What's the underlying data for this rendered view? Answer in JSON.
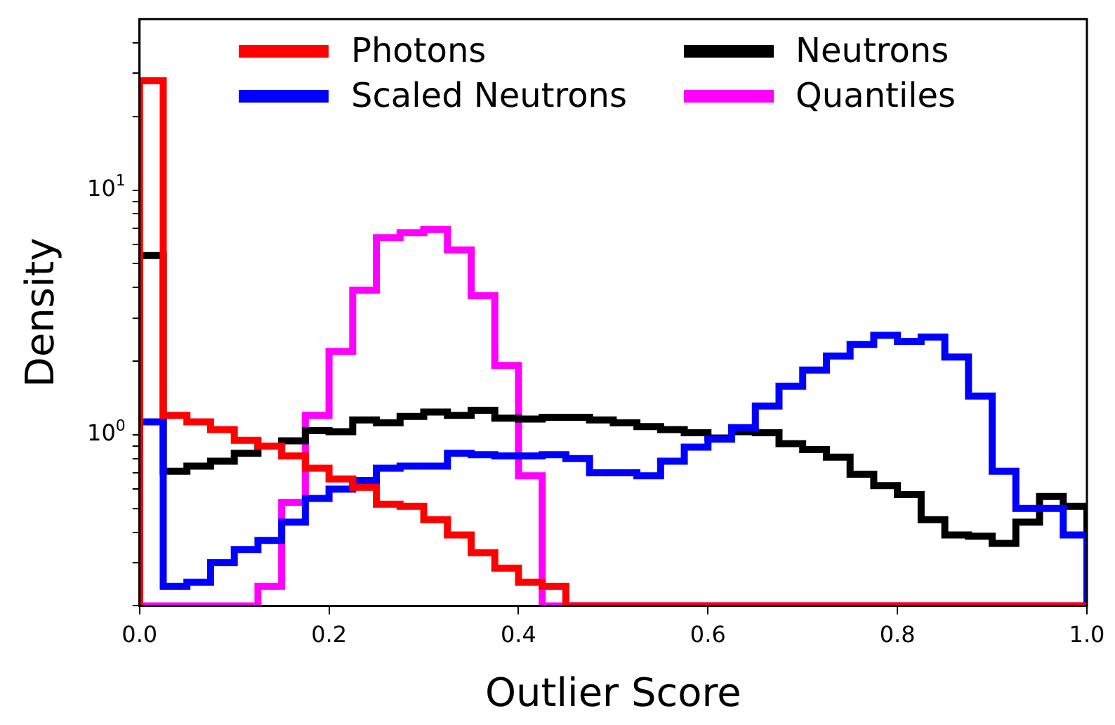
{
  "chart_data": {
    "type": "histogram",
    "xlabel": "Outlier Score",
    "ylabel": "Density",
    "log": "y",
    "grid": false,
    "legend": "top",
    "line_style": "solid",
    "bins": [
      0,
      0.025,
      0.05,
      0.075,
      0.1,
      0.125,
      0.15,
      0.175,
      0.2,
      0.225,
      0.25,
      0.275,
      0.3,
      0.325,
      0.35,
      0.375,
      0.4,
      0.425,
      0.45,
      0.475,
      0.5,
      0.525,
      0.55,
      0.575,
      0.6,
      0.625,
      0.65,
      0.675,
      0.7,
      0.725,
      0.75,
      0.775,
      0.8,
      0.825,
      0.85,
      0.875,
      0.9,
      0.925,
      0.95,
      0.975,
      1.0
    ],
    "series": [
      {
        "name": "Photons",
        "color": "#ff0000",
        "values": [
          28,
          1.2,
          1.13,
          1.05,
          0.95,
          0.9,
          0.82,
          0.73,
          0.66,
          0.61,
          0.52,
          0.51,
          0.45,
          0.39,
          0.33,
          0.285,
          0.25,
          0.24,
          null,
          null,
          null,
          null,
          null,
          null,
          null,
          null,
          null,
          null,
          null,
          null,
          null,
          null,
          null,
          null,
          null,
          null,
          null,
          null,
          null,
          null
        ]
      },
      {
        "name": "Scaled Neutrons",
        "color": "#0000ff",
        "values": [
          1.13,
          0.24,
          0.25,
          0.3,
          0.34,
          0.37,
          0.44,
          0.55,
          0.6,
          0.65,
          0.73,
          0.745,
          0.745,
          0.84,
          0.83,
          0.82,
          0.82,
          0.83,
          0.8,
          0.7,
          0.7,
          0.68,
          0.78,
          0.89,
          0.96,
          1.07,
          1.31,
          1.58,
          1.84,
          2.1,
          2.34,
          2.55,
          2.41,
          2.51,
          2.08,
          1.44,
          0.71,
          0.5,
          0.5,
          0.39
        ]
      },
      {
        "name": "Neutrons",
        "color": "#000000",
        "values": [
          5.4,
          0.71,
          0.745,
          0.78,
          0.84,
          0.9,
          0.945,
          1.04,
          1.03,
          1.15,
          1.12,
          1.19,
          1.24,
          1.2,
          1.26,
          1.17,
          1.16,
          1.18,
          1.18,
          1.15,
          1.12,
          1.08,
          1.05,
          1.02,
          0.97,
          1.03,
          1.02,
          0.92,
          0.87,
          0.81,
          0.69,
          0.62,
          0.57,
          0.45,
          0.39,
          0.385,
          0.36,
          0.44,
          0.56,
          0.51
        ]
      },
      {
        "name": "Quantiles",
        "color": "#ff00ff",
        "values": [
          null,
          null,
          null,
          null,
          null,
          0.24,
          0.53,
          1.2,
          2.19,
          3.9,
          6.4,
          6.7,
          6.9,
          5.7,
          3.7,
          1.92,
          0.68,
          null,
          null,
          null,
          null,
          null,
          null,
          null,
          null,
          null,
          null,
          null,
          null,
          null,
          null,
          null,
          null,
          null,
          null,
          null,
          null,
          null,
          null,
          null
        ]
      }
    ],
    "xlim": [
      0,
      1.0
    ],
    "xticks": [
      {
        "value": 0,
        "label": "0.0"
      },
      {
        "value": 0.2,
        "label": "0.2"
      },
      {
        "value": 0.4,
        "label": "0.4"
      },
      {
        "value": 0.6,
        "label": "0.6"
      },
      {
        "value": 0.8,
        "label": "0.8"
      },
      {
        "value": 1.0,
        "label": "1.0"
      }
    ],
    "ylim": [
      0.2,
      50
    ],
    "yticks": [
      {
        "value": 0.2,
        "label": null
      },
      {
        "value": 0.3,
        "label": null
      },
      {
        "value": 0.4,
        "label": null
      },
      {
        "value": 0.5,
        "label": null
      },
      {
        "value": 0.6,
        "label": null
      },
      {
        "value": 0.7,
        "label": null
      },
      {
        "value": 0.8,
        "label": null
      },
      {
        "value": 0.9,
        "label": null
      },
      {
        "value": 1,
        "label": "10$^{0}$"
      },
      {
        "value": 2,
        "label": null
      },
      {
        "value": 3,
        "label": null
      },
      {
        "value": 4,
        "label": null
      },
      {
        "value": 5,
        "label": null
      },
      {
        "value": 6,
        "label": null
      },
      {
        "value": 7,
        "label": null
      },
      {
        "value": 8,
        "label": null
      },
      {
        "value": 9,
        "label": null
      },
      {
        "value": 10,
        "label": "10$^{1}$"
      },
      {
        "value": 20,
        "label": null
      },
      {
        "value": 30,
        "label": null
      },
      {
        "value": 40,
        "label": null
      }
    ]
  }
}
